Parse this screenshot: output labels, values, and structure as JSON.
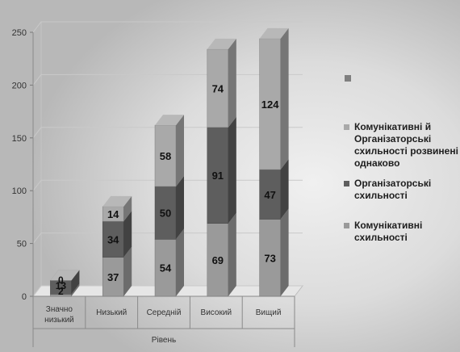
{
  "chart_data": {
    "type": "bar",
    "stacked": true,
    "three_d": true,
    "categories": [
      "Значно низький",
      "Низький",
      "Середній",
      "Високий",
      "Вищий"
    ],
    "category_lines": [
      [
        "Значно",
        "низький"
      ],
      [
        "Низький"
      ],
      [
        "Середній"
      ],
      [
        "Високий"
      ],
      [
        "Вищий"
      ]
    ],
    "series": [
      {
        "name": "Комунікативні схильності",
        "legend_lines": [
          "Комунікативні",
          "схильності"
        ],
        "color": "#9a9a9a",
        "values": [
          2,
          37,
          54,
          69,
          73
        ]
      },
      {
        "name": "Організаторські схильності",
        "legend_lines": [
          "Організаторські",
          "схильності"
        ],
        "color": "#5e5e5e",
        "values": [
          13,
          34,
          50,
          91,
          47
        ]
      },
      {
        "name": "Комунікативні й Організаторські схильності розвинені однаково",
        "legend_lines": [
          "Комунікативні й",
          "Організаторські",
          "схильності розвинені",
          "однаково"
        ],
        "color": "#a9a9a9",
        "values": [
          0,
          14,
          58,
          74,
          124
        ]
      }
    ],
    "xlabel": "Рівень",
    "ylabel": "",
    "ylim": [
      0,
      250
    ],
    "yticks": [
      0,
      50,
      100,
      150,
      200,
      250
    ],
    "grid": true,
    "legend_position": "right",
    "legend_extra_color": "#7f7f7f"
  }
}
